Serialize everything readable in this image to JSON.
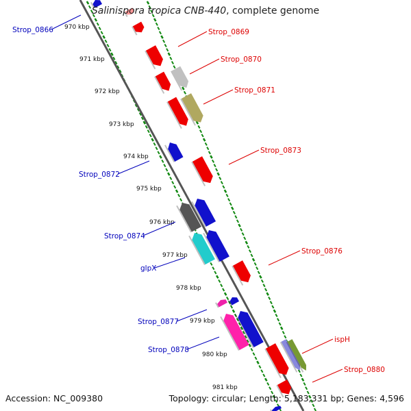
{
  "title": {
    "species": "Salinispora tropica CNB-440",
    "suffix": ", complete genome"
  },
  "footer": {
    "accession": "Accession: NC_009380",
    "topology": "Topology: circular; Length: 5,183,331 bp; Genes: 4,596"
  },
  "ruler": [
    "970 kbp",
    "971 kbp",
    "972 kbp",
    "973 kbp",
    "974 kbp",
    "975 kbp",
    "976 kbp",
    "977 kbp",
    "978 kbp",
    "979 kbp",
    "980 kbp",
    "981 kbp"
  ],
  "labels": {
    "forward_color": "#dd0000",
    "reverse_color": "#0000bb",
    "forward": [
      "Strop_0869",
      "Strop_0870",
      "Strop_0871",
      "Strop_0873",
      "Strop_0876",
      "ispH",
      "Strop_0880"
    ],
    "reverse": [
      "Strop_0866",
      "Strop_0872",
      "Strop_0874",
      "glpX",
      "Strop_0877",
      "Strop_0878"
    ]
  }
}
